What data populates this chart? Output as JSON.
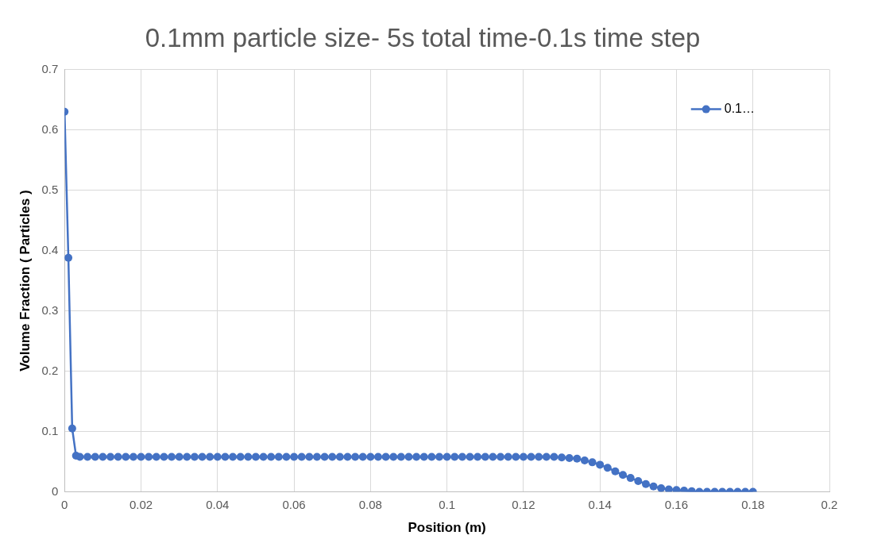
{
  "chart_data": {
    "type": "line",
    "title": "0.1mm particle size- 5s total time-0.1s time step",
    "xlabel": "Position (m)",
    "ylabel": "Volume Fraction ( Particles )",
    "x": [
      0,
      0.001,
      0.002,
      0.003,
      0.004,
      0.006,
      0.008,
      0.01,
      0.012,
      0.014,
      0.016,
      0.018,
      0.02,
      0.022,
      0.024,
      0.026,
      0.028,
      0.03,
      0.032,
      0.034,
      0.036,
      0.038,
      0.04,
      0.042,
      0.044,
      0.046,
      0.048,
      0.05,
      0.052,
      0.054,
      0.056,
      0.058,
      0.06,
      0.062,
      0.064,
      0.066,
      0.068,
      0.07,
      0.072,
      0.074,
      0.076,
      0.078,
      0.08,
      0.082,
      0.084,
      0.086,
      0.088,
      0.09,
      0.092,
      0.094,
      0.096,
      0.098,
      0.1,
      0.102,
      0.104,
      0.106,
      0.108,
      0.11,
      0.112,
      0.114,
      0.116,
      0.118,
      0.12,
      0.122,
      0.124,
      0.126,
      0.128,
      0.13,
      0.132,
      0.134,
      0.136,
      0.138,
      0.14,
      0.142,
      0.144,
      0.146,
      0.148,
      0.15,
      0.152,
      0.154,
      0.156,
      0.158,
      0.16,
      0.162,
      0.164,
      0.166,
      0.168,
      0.17,
      0.172,
      0.174,
      0.176,
      0.178,
      0.18
    ],
    "series": [
      {
        "name": "0.1…",
        "color": "#4472c4",
        "values": [
          0.63,
          0.388,
          0.105,
          0.06,
          0.058,
          0.058,
          0.058,
          0.058,
          0.058,
          0.058,
          0.058,
          0.058,
          0.058,
          0.058,
          0.058,
          0.058,
          0.058,
          0.058,
          0.058,
          0.058,
          0.058,
          0.058,
          0.058,
          0.058,
          0.058,
          0.058,
          0.058,
          0.058,
          0.058,
          0.058,
          0.058,
          0.058,
          0.058,
          0.058,
          0.058,
          0.058,
          0.058,
          0.058,
          0.058,
          0.058,
          0.058,
          0.058,
          0.058,
          0.058,
          0.058,
          0.058,
          0.058,
          0.058,
          0.058,
          0.058,
          0.058,
          0.058,
          0.058,
          0.058,
          0.058,
          0.058,
          0.058,
          0.058,
          0.058,
          0.058,
          0.058,
          0.058,
          0.058,
          0.058,
          0.058,
          0.058,
          0.058,
          0.057,
          0.056,
          0.055,
          0.052,
          0.049,
          0.045,
          0.04,
          0.034,
          0.028,
          0.023,
          0.018,
          0.013,
          0.009,
          0.006,
          0.004,
          0.003,
          0.002,
          0.001,
          0,
          0,
          0,
          0,
          0,
          0,
          0,
          0
        ]
      }
    ],
    "xlim": [
      0,
      0.2
    ],
    "xticks": [
      0,
      0.02,
      0.04,
      0.06,
      0.08,
      0.1,
      0.12,
      0.14,
      0.16,
      0.18,
      0.2
    ],
    "ylim": [
      0,
      0.7
    ],
    "yticks": [
      0,
      0.1,
      0.2,
      0.3,
      0.4,
      0.5,
      0.6,
      0.7
    ],
    "grid": true,
    "legend": "top right",
    "marker": "circle",
    "line_style": "solid"
  }
}
